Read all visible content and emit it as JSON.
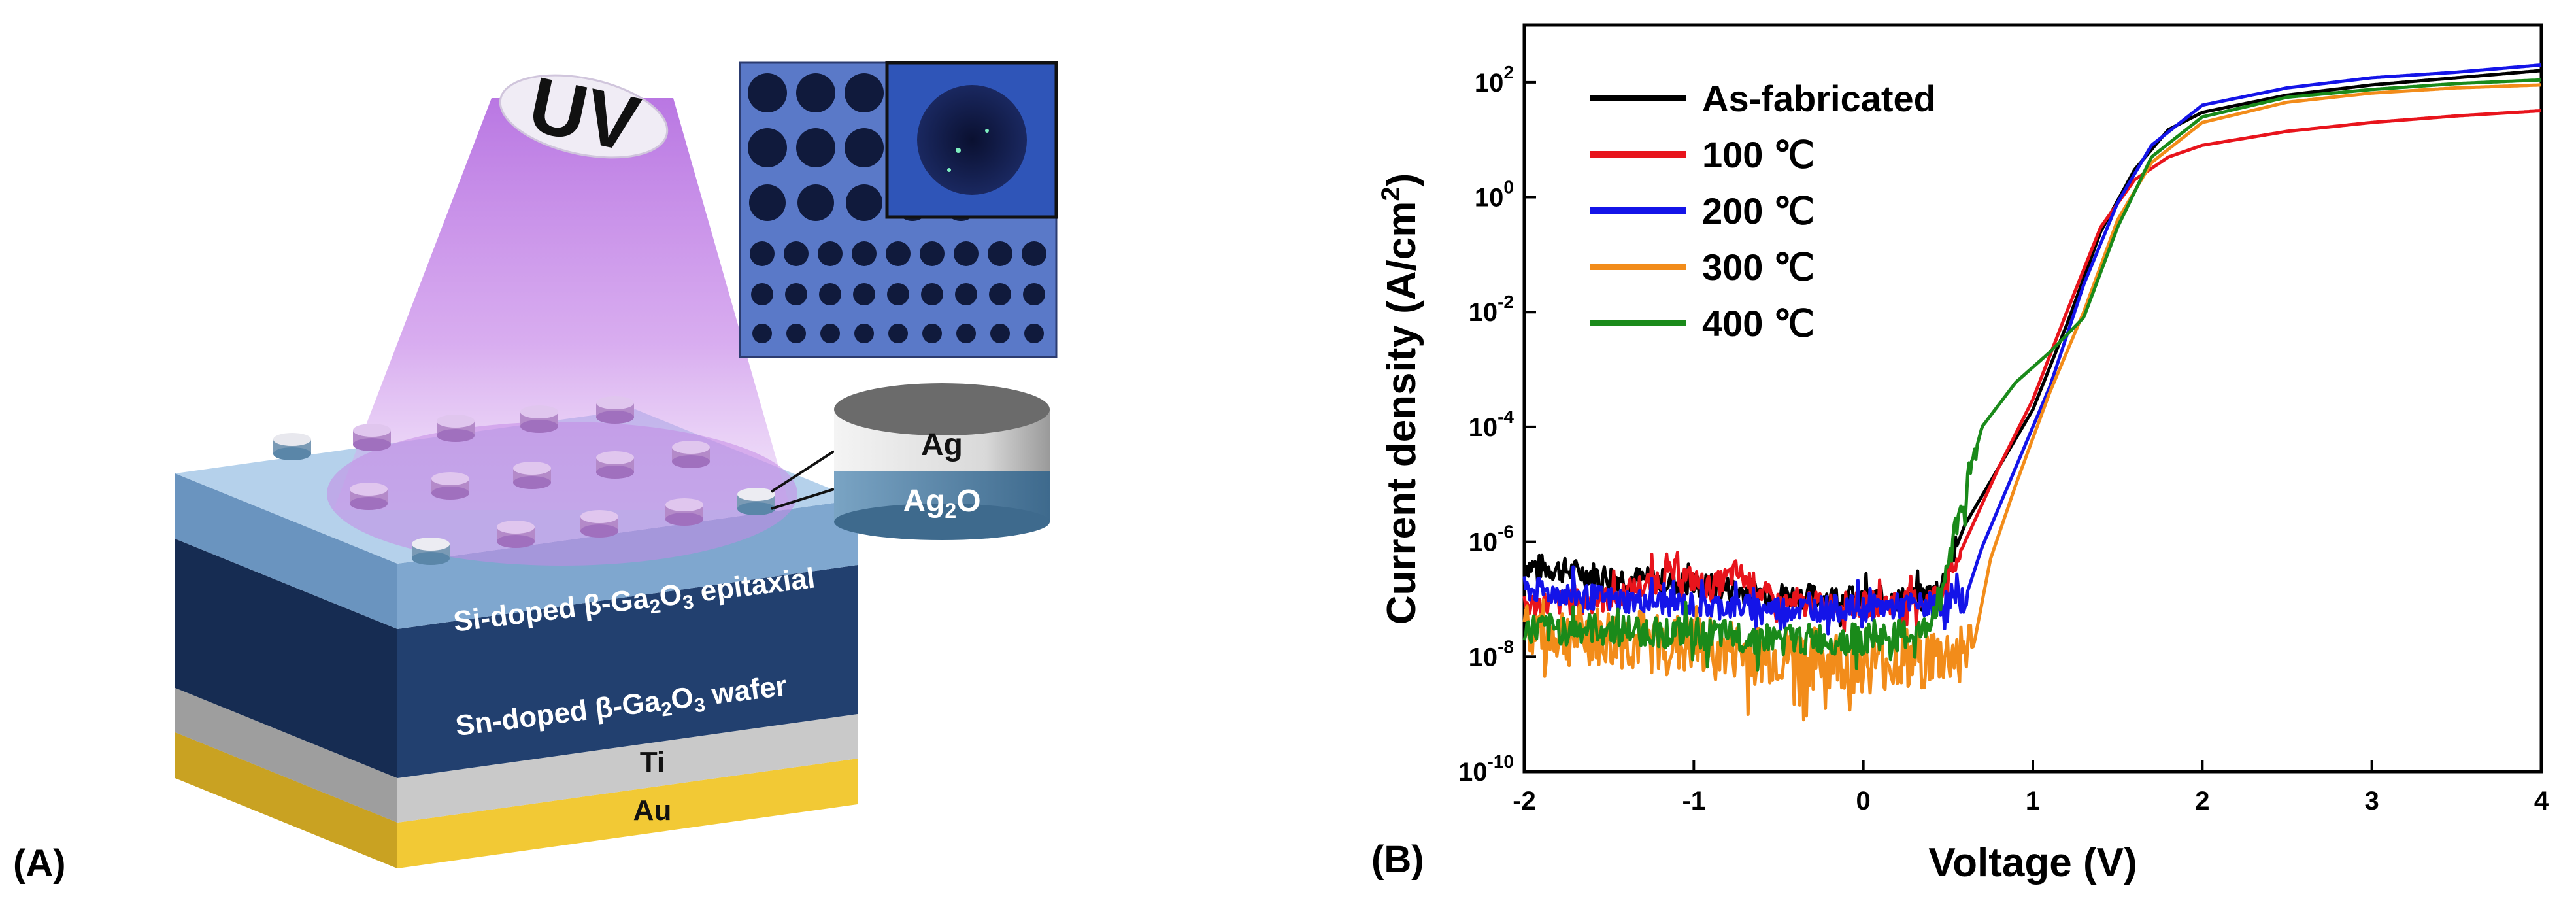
{
  "panel_a": {
    "label": "(A)",
    "uv_label": "UV",
    "contact_top_label": "Ag",
    "contact_bottom_label": "Ag",
    "contact_bottom_subscript": "2",
    "contact_bottom_suffix": "O",
    "layers": {
      "epitaxial": {
        "prefix": "Si-doped β-Ga",
        "sub1": "2",
        "mid": "O",
        "sub2": "3",
        "suffix": " epitaxial"
      },
      "wafer": {
        "prefix": "Sn-doped β-Ga",
        "sub1": "2",
        "mid": "O",
        "sub2": "3",
        "suffix": " wafer"
      },
      "ti": "Ti",
      "au": "Au"
    },
    "colors": {
      "uv_beam": "#c27be8",
      "epitaxial": "#a9c8e6",
      "wafer": "#1f3a66",
      "ti": "#c7c7c7",
      "au": "#f1c83a",
      "contact_ag": "#d8d8d8",
      "contact_ag2o": "#5a86a8"
    }
  },
  "panel_b": {
    "label": "(B)",
    "chart_data": {
      "type": "line",
      "title": "",
      "xlabel": "Voltage (V)",
      "ylabel_prefix": "Current density (A/cm",
      "ylabel_superscript": "2",
      "ylabel_suffix": ")",
      "x_scale": "linear",
      "y_scale": "log",
      "xlim": [
        -2,
        4
      ],
      "ylim": [
        1e-10,
        1000
      ],
      "x_ticks": [
        -2,
        -1,
        0,
        1,
        2,
        3,
        4
      ],
      "y_ticks": [
        {
          "value": 1e-10,
          "base": "10",
          "exp": "-10"
        },
        {
          "value": 1e-08,
          "base": "10",
          "exp": "-8"
        },
        {
          "value": 1e-06,
          "base": "10",
          "exp": "-6"
        },
        {
          "value": 0.0001,
          "base": "10",
          "exp": "-4"
        },
        {
          "value": 0.01,
          "base": "10",
          "exp": "-2"
        },
        {
          "value": 1,
          "base": "10",
          "exp": "0"
        },
        {
          "value": 100,
          "base": "10",
          "exp": "2"
        }
      ],
      "legend_position": "top-left",
      "series": [
        {
          "name": "As-fabricated",
          "color": "#000000",
          "points": [
            [
              -2,
              4e-07
            ],
            [
              -1.5,
              2.5e-07
            ],
            [
              -1,
              1.8e-07
            ],
            [
              -0.5,
              1.2e-07
            ],
            [
              0,
              1e-07
            ],
            [
              0.3,
              1e-07
            ],
            [
              0.45,
              1.4e-07
            ],
            [
              0.6,
              2e-06
            ],
            [
              0.8,
              2e-05
            ],
            [
              1,
              0.0002
            ],
            [
              1.2,
              0.006
            ],
            [
              1.4,
              0.25
            ],
            [
              1.6,
              3
            ],
            [
              1.8,
              15
            ],
            [
              2,
              30
            ],
            [
              2.5,
              60
            ],
            [
              3,
              90
            ],
            [
              3.5,
              120
            ],
            [
              4,
              160
            ]
          ]
        },
        {
          "name": "100 ℃",
          "color": "#e8141c",
          "points": [
            [
              -2,
              8e-08
            ],
            [
              -1.5,
              1e-07
            ],
            [
              -1.1,
              3e-07
            ],
            [
              -0.9,
              1.5e-07
            ],
            [
              -0.75,
              3e-07
            ],
            [
              -0.5,
              8e-08
            ],
            [
              0,
              8e-08
            ],
            [
              0.4,
              1e-07
            ],
            [
              0.5,
              2e-07
            ],
            [
              0.6,
              1e-06
            ],
            [
              0.8,
              2e-05
            ],
            [
              1,
              0.0003
            ],
            [
              1.2,
              0.01
            ],
            [
              1.4,
              0.3
            ],
            [
              1.6,
              2
            ],
            [
              1.8,
              5
            ],
            [
              2,
              8
            ],
            [
              2.5,
              14
            ],
            [
              3,
              20
            ],
            [
              3.5,
              26
            ],
            [
              4,
              32
            ]
          ]
        },
        {
          "name": "200 ℃",
          "color": "#1414e8",
          "points": [
            [
              -2,
              1.5e-07
            ],
            [
              -1.5,
              1e-07
            ],
            [
              -1,
              8e-08
            ],
            [
              -0.5,
              7e-08
            ],
            [
              0,
              7e-08
            ],
            [
              0.4,
              8e-08
            ],
            [
              0.6,
              1e-07
            ],
            [
              0.7,
              8e-07
            ],
            [
              0.9,
              2e-05
            ],
            [
              1.1,
              0.0005
            ],
            [
              1.3,
              0.03
            ],
            [
              1.5,
              0.8
            ],
            [
              1.7,
              8
            ],
            [
              2,
              40
            ],
            [
              2.5,
              80
            ],
            [
              3,
              120
            ],
            [
              3.5,
              150
            ],
            [
              4,
              200
            ]
          ]
        },
        {
          "name": "300 ℃",
          "color": "#f28c1a",
          "points": [
            [
              -2,
              3e-08
            ],
            [
              -1.5,
              2e-08
            ],
            [
              -1,
              1.5e-08
            ],
            [
              -0.5,
              1e-08
            ],
            [
              0,
              8e-09
            ],
            [
              0.5,
              1e-08
            ],
            [
              0.65,
              1.5e-08
            ],
            [
              0.75,
              5e-07
            ],
            [
              0.9,
              1e-05
            ],
            [
              1.1,
              0.0004
            ],
            [
              1.3,
              0.01
            ],
            [
              1.5,
              0.4
            ],
            [
              1.7,
              4
            ],
            [
              2,
              20
            ],
            [
              2.5,
              45
            ],
            [
              3,
              65
            ],
            [
              3.5,
              80
            ],
            [
              4,
              90
            ]
          ]
        },
        {
          "name": "400 ℃",
          "color": "#1a8a1a",
          "points": [
            [
              -2,
              3e-08
            ],
            [
              -1.5,
              3e-08
            ],
            [
              -1,
              2.5e-08
            ],
            [
              -0.5,
              2e-08
            ],
            [
              0,
              2e-08
            ],
            [
              0.35,
              2.5e-08
            ],
            [
              0.45,
              1e-07
            ],
            [
              0.55,
              2e-06
            ],
            [
              0.7,
              0.0001
            ],
            [
              0.9,
              0.0006
            ],
            [
              1.1,
              0.002
            ],
            [
              1.3,
              0.008
            ],
            [
              1.5,
              0.3
            ],
            [
              1.7,
              5
            ],
            [
              2,
              25
            ],
            [
              2.5,
              55
            ],
            [
              3,
              75
            ],
            [
              3.5,
              95
            ],
            [
              4,
              110
            ]
          ]
        }
      ]
    }
  }
}
